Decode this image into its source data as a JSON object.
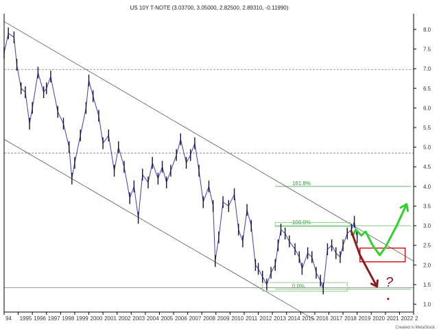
{
  "chart_data": {
    "type": "line",
    "title": "US 10Y T-NOTE (3.03700, 3.05000, 2.82500, 2.89310, -0.11990)",
    "credit": "Created in MetaStock",
    "x_ticks": [
      "94",
      "1995",
      "1996",
      "1997",
      "1998",
      "1999",
      "2000",
      "2001",
      "2002",
      "2003",
      "2004",
      "2005",
      "2006",
      "2007",
      "2008",
      "2009",
      "2010",
      "2011",
      "2012",
      "2013",
      "2014",
      "2015",
      "2016",
      "2017",
      "2018",
      "2019",
      "2020",
      "2021",
      "2022",
      "2"
    ],
    "y_ticks": [
      "8.0",
      "7.5",
      "7.0",
      "6.5",
      "6.0",
      "5.5",
      "5.0",
      "4.5",
      "4.0",
      "3.5",
      "3.0",
      "2.5",
      "2.0",
      "1.5",
      "1.0"
    ],
    "ylim": [
      0.8,
      8.4
    ],
    "xlim": [
      1994.0,
      2023.0
    ],
    "grid": false,
    "series": [
      {
        "x": [
          1994.0,
          1994.3,
          1994.7,
          1994.9,
          1995.2,
          1995.5,
          1995.8,
          1996.0,
          1996.4,
          1996.8,
          1997.0,
          1997.3,
          1997.8,
          1998.2,
          1998.6,
          1998.8,
          1999.0,
          1999.4,
          1999.8,
          2000.0,
          2000.3,
          2000.7,
          2001.0,
          2001.4,
          2001.8,
          2002.1,
          2002.5,
          2002.9,
          2003.2,
          2003.5,
          2003.8,
          2004.2,
          2004.5,
          2004.9,
          2005.2,
          2005.5,
          2005.8,
          2006.2,
          2006.5,
          2006.9,
          2007.2,
          2007.5,
          2007.8,
          2008.1,
          2008.5,
          2008.8,
          2008.95,
          2009.2,
          2009.5,
          2009.9,
          2010.3,
          2010.6,
          2010.9,
          2011.2,
          2011.5,
          2011.8,
          2012.0,
          2012.3,
          2012.6,
          2012.9,
          2013.2,
          2013.4,
          2013.6,
          2013.9,
          2014.2,
          2014.6,
          2014.9,
          2015.1,
          2015.5,
          2015.8,
          2016.1,
          2016.4,
          2016.6,
          2016.9,
          2017.2,
          2017.5,
          2017.8,
          2018.0,
          2018.3,
          2018.6,
          2018.8,
          2019.0
        ],
        "y": [
          7.4,
          7.9,
          7.8,
          7.1,
          6.5,
          6.4,
          5.6,
          6.0,
          6.9,
          6.4,
          6.5,
          6.8,
          5.9,
          5.6,
          5.0,
          4.2,
          4.6,
          5.3,
          6.0,
          6.7,
          6.3,
          5.8,
          5.1,
          5.3,
          4.4,
          5.0,
          4.5,
          3.7,
          4.0,
          3.2,
          4.3,
          4.1,
          4.6,
          4.2,
          4.5,
          4.1,
          4.4,
          4.8,
          5.2,
          4.6,
          4.8,
          5.1,
          4.4,
          3.6,
          4.0,
          3.5,
          2.1,
          2.7,
          3.6,
          3.5,
          3.8,
          2.9,
          2.6,
          3.4,
          3.0,
          2.0,
          1.9,
          1.7,
          1.5,
          1.8,
          2.0,
          2.5,
          2.9,
          2.8,
          2.6,
          2.4,
          2.2,
          1.9,
          2.3,
          2.2,
          1.8,
          1.6,
          1.4,
          2.4,
          2.5,
          2.3,
          2.2,
          2.5,
          2.8,
          2.9,
          3.1,
          2.7
        ]
      }
    ],
    "annotations": {
      "fib_levels": [
        {
          "label": "161.8%",
          "value": 4.0
        },
        {
          "label": "100.0%",
          "value": 3.0
        },
        {
          "label": "0.0%",
          "value": 1.38
        }
      ],
      "horizontal_lines": [
        6.98,
        4.85,
        1.42
      ],
      "channel_upper": [
        [
          1994.0,
          8.2
        ],
        [
          2023.0,
          2.1
        ]
      ],
      "channel_lower": [
        [
          1994.0,
          5.2
        ],
        [
          2016.0,
          0.6
        ]
      ],
      "green_path": [
        [
          2018.7,
          2.75
        ],
        [
          2018.9,
          2.9
        ],
        [
          2019.3,
          2.75
        ],
        [
          2019.6,
          2.85
        ],
        [
          2020.1,
          2.5
        ],
        [
          2020.6,
          2.25
        ],
        [
          2021.0,
          2.45
        ],
        [
          2021.8,
          3.0
        ],
        [
          2022.5,
          3.55
        ]
      ],
      "red_path": [
        [
          2018.6,
          2.85
        ],
        [
          2019.2,
          2.25
        ],
        [
          2019.8,
          1.85
        ],
        [
          2020.4,
          1.45
        ]
      ],
      "red_box": {
        "x0": 2019.2,
        "x1": 2022.4,
        "y0": 2.08,
        "y1": 2.43
      },
      "green_box_top": {
        "x0": 2013.2,
        "x1": 2018.5,
        "y0": 2.98,
        "y1": 3.08
      },
      "green_box_bottom": {
        "x0": 2012.3,
        "x1": 2018.3,
        "y0": 1.33,
        "y1": 1.55
      },
      "question_mark": {
        "text": "?",
        "x": 2021.0,
        "y": 1.45
      }
    }
  }
}
